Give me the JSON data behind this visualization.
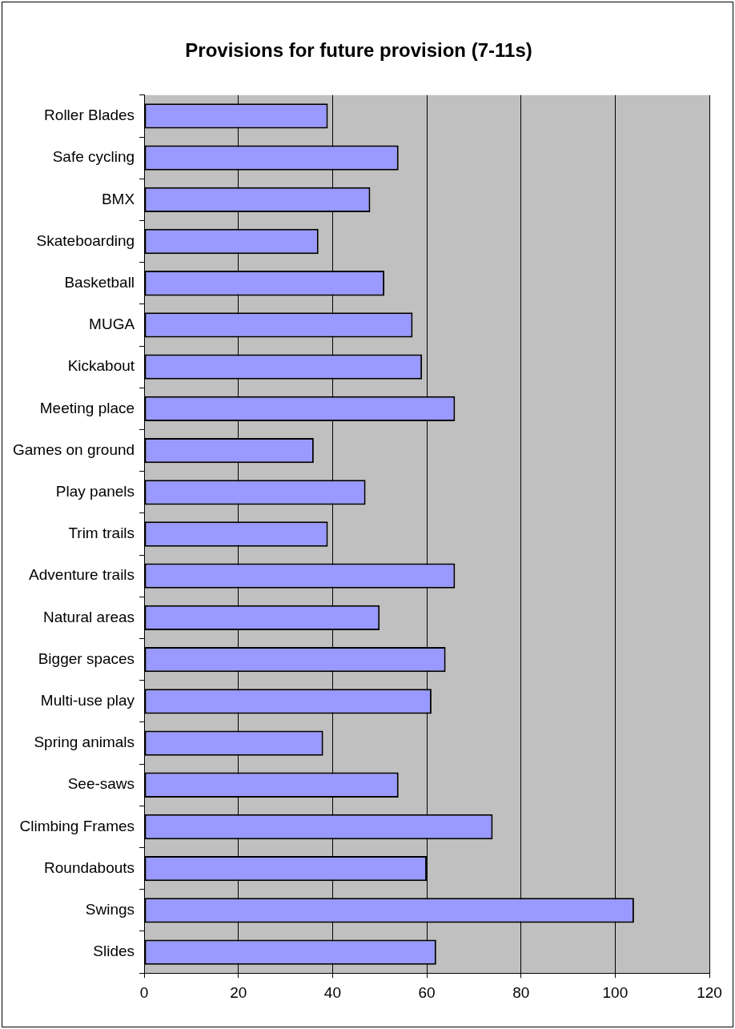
{
  "chart_data": {
    "type": "bar",
    "orientation": "horizontal",
    "title": "Provisions for future provision (7-11s)",
    "categories": [
      "Roller Blades",
      "Safe cycling",
      "BMX",
      "Skateboarding",
      "Basketball",
      "MUGA",
      "Kickabout",
      "Meeting place",
      "Games on ground",
      "Play panels",
      "Trim trails",
      "Adventure trails",
      "Natural areas",
      "Bigger spaces",
      "Multi-use play",
      "Spring animals",
      "See-saws",
      "Climbing Frames",
      "Roundabouts",
      "Swings",
      "Slides"
    ],
    "values": [
      39,
      54,
      48,
      37,
      51,
      57,
      59,
      66,
      36,
      47,
      39,
      66,
      50,
      64,
      61,
      38,
      54,
      74,
      60,
      104,
      62
    ],
    "color": "#9999ff",
    "xlim": [
      0,
      120
    ],
    "xticks": [
      0,
      20,
      40,
      60,
      80,
      100,
      120
    ],
    "grid": "x",
    "legend": false
  }
}
